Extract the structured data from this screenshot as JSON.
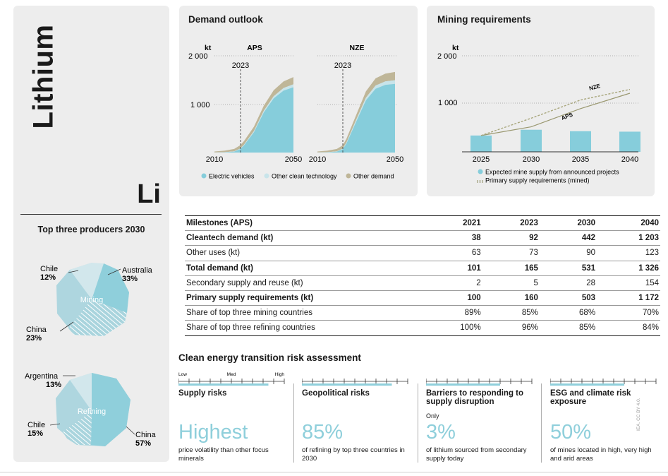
{
  "element": {
    "name": "Lithium",
    "symbol": "Li"
  },
  "colors": {
    "ev": "#86cddb",
    "other_clean": "#c8e4ea",
    "other_demand": "#bfb698",
    "accent": "#8fcfdb",
    "pie_dark": "#8fcfdb",
    "pie_mid": "#aed6df",
    "pie_light": "#d2e7ec"
  },
  "producers": {
    "title": "Top three producers 2030",
    "mining": {
      "label": "Mining",
      "slices": [
        {
          "country": "Australia",
          "share": "33%"
        },
        {
          "country": "China",
          "share": "23%"
        },
        {
          "country": "Chile",
          "share": "12%"
        }
      ]
    },
    "refining": {
      "label": "Refining",
      "slices": [
        {
          "country": "China",
          "share": "57%"
        },
        {
          "country": "Chile",
          "share": "15%"
        },
        {
          "country": "Argentina",
          "share": "13%"
        }
      ]
    }
  },
  "demand": {
    "title": "Demand outlook",
    "unit": "kt",
    "y_ticks": [
      "2 000",
      "1 000"
    ],
    "marker_year": "2023",
    "x_start": "2010",
    "x_end": "2050",
    "legend": [
      "Electric vehicles",
      "Other clean technology",
      "Other demand"
    ]
  },
  "mining_req": {
    "title": "Mining requirements",
    "unit": "kt",
    "y_ticks": [
      "2 000",
      "1 000"
    ],
    "legend": [
      "Expected mine supply from announced projects",
      "Primary supply requirements (mined)"
    ],
    "line_labels": [
      "NZE",
      "APS"
    ]
  },
  "milestones": {
    "header": [
      "Milestones (APS)",
      "2021",
      "2023",
      "2030",
      "2040"
    ],
    "rows": [
      {
        "label": "Cleantech demand (kt)",
        "values": [
          "38",
          "92",
          "442",
          "1 203"
        ],
        "bold": true
      },
      {
        "label": "Other uses (kt)",
        "values": [
          "63",
          "73",
          "90",
          "123"
        ],
        "bold": false
      },
      {
        "label": "Total demand (kt)",
        "values": [
          "101",
          "165",
          "531",
          "1 326"
        ],
        "bold": true
      },
      {
        "label": "Secondary supply and reuse (kt)",
        "values": [
          "2",
          "5",
          "28",
          "154"
        ],
        "bold": false
      },
      {
        "label": "Primary supply requirements (kt)",
        "values": [
          "100",
          "160",
          "503",
          "1 172"
        ],
        "bold": true
      },
      {
        "label": "Share of top three mining countries",
        "values": [
          "89%",
          "85%",
          "68%",
          "70%"
        ],
        "bold": false
      },
      {
        "label": "Share of top three refining countries",
        "values": [
          "100%",
          "96%",
          "85%",
          "84%"
        ],
        "bold": false
      }
    ]
  },
  "risk": {
    "title": "Clean energy transition risk assessment",
    "scale": [
      "Low",
      "Med",
      "High"
    ],
    "items": [
      {
        "name": "Supply risks",
        "pre": "",
        "big": "Highest",
        "desc": "price volatility than other focus minerals",
        "level": 0.85
      },
      {
        "name": "Geopolitical risks",
        "pre": "",
        "big": "85%",
        "desc": "of refining by top three countries in 2030",
        "level": 0.85
      },
      {
        "name": "Barriers to responding to supply disruption",
        "pre": "Only",
        "big": "3%",
        "desc": "of lithium sourced from secondary supply today",
        "level": 0.7
      },
      {
        "name": "ESG and climate risk exposure",
        "pre": "",
        "big": "50%",
        "desc": "of mines located in high, very high and arid areas",
        "level": 0.7
      }
    ]
  },
  "credit": "IEA. CC BY 4.0.",
  "chart_data": [
    {
      "type": "area",
      "title": "APS",
      "stacked": true,
      "x": [
        2010,
        2015,
        2020,
        2023,
        2025,
        2030,
        2035,
        2040,
        2045,
        2050
      ],
      "series": [
        {
          "name": "Electric vehicles",
          "values": [
            0,
            5,
            20,
            70,
            150,
            420,
            830,
            1120,
            1280,
            1350
          ]
        },
        {
          "name": "Other clean technology",
          "values": [
            2,
            3,
            5,
            10,
            15,
            25,
            35,
            45,
            55,
            60
          ]
        },
        {
          "name": "Other demand",
          "values": [
            20,
            30,
            50,
            70,
            75,
            90,
            105,
            123,
            135,
            150
          ]
        }
      ],
      "ylim": [
        0,
        2000
      ],
      "xlabel": "",
      "ylabel": "kt"
    },
    {
      "type": "area",
      "title": "NZE",
      "stacked": true,
      "x": [
        2010,
        2015,
        2020,
        2023,
        2025,
        2030,
        2035,
        2040,
        2045,
        2050
      ],
      "series": [
        {
          "name": "Electric vehicles",
          "values": [
            0,
            5,
            20,
            70,
            190,
            640,
            1080,
            1320,
            1400,
            1420
          ]
        },
        {
          "name": "Other clean technology",
          "values": [
            2,
            3,
            5,
            10,
            20,
            40,
            55,
            65,
            70,
            75
          ]
        },
        {
          "name": "Other demand",
          "values": [
            20,
            30,
            50,
            70,
            80,
            100,
            130,
            150,
            160,
            170
          ]
        }
      ],
      "ylim": [
        0,
        2000
      ],
      "xlabel": "",
      "ylabel": "kt"
    },
    {
      "type": "bar",
      "title": "Mining requirements",
      "categories": [
        "2025",
        "2030",
        "2035",
        "2040"
      ],
      "values": [
        340,
        460,
        430,
        420
      ],
      "series_lines": [
        {
          "name": "APS",
          "values": [
            340,
            520,
            900,
            1220
          ]
        },
        {
          "name": "NZE",
          "values": [
            340,
            700,
            1080,
            1300
          ]
        }
      ],
      "ylim": [
        0,
        2000
      ],
      "ylabel": "kt"
    }
  ]
}
